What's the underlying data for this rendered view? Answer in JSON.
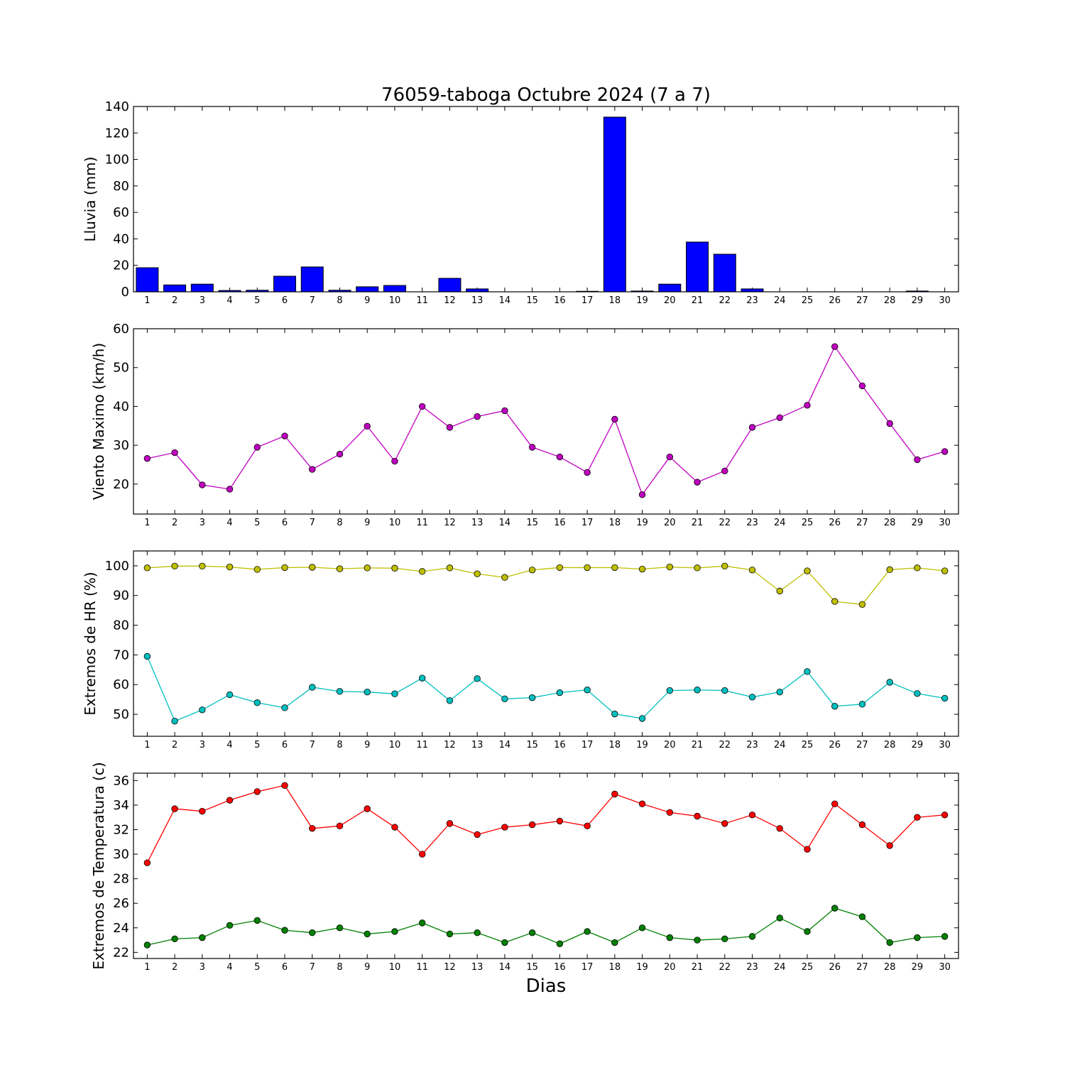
{
  "chart_data": [
    {
      "type": "bar",
      "title": "76059-taboga Octubre 2024  (7 a 7)",
      "ylabel": "Lluvia (mm)",
      "xlabel": "",
      "ylim": [
        0,
        140
      ],
      "yticks": [
        0,
        20,
        40,
        60,
        80,
        100,
        120,
        140
      ],
      "categories": [
        1,
        2,
        3,
        4,
        5,
        6,
        7,
        8,
        9,
        10,
        11,
        12,
        13,
        14,
        15,
        16,
        17,
        18,
        19,
        20,
        21,
        22,
        23,
        24,
        25,
        26,
        27,
        28,
        29,
        30
      ],
      "values": [
        18.2,
        5.2,
        5.8,
        1.0,
        1.2,
        11.8,
        18.8,
        1.2,
        3.8,
        4.8,
        0,
        10.2,
        2.2,
        0,
        0,
        0,
        0.4,
        132.0,
        0.6,
        5.8,
        37.6,
        28.4,
        2.2,
        0,
        0,
        0,
        0,
        0,
        0.6,
        0
      ],
      "color": "#0000ff"
    },
    {
      "type": "line",
      "title": "",
      "ylabel": "Viento Maximo (km/h)",
      "xlabel": "",
      "ylim": [
        12.3,
        60
      ],
      "yticks": [
        20,
        30,
        40,
        50,
        60
      ],
      "x": [
        1,
        2,
        3,
        4,
        5,
        6,
        7,
        8,
        9,
        10,
        11,
        12,
        13,
        14,
        15,
        16,
        17,
        18,
        19,
        20,
        21,
        22,
        23,
        24,
        25,
        26,
        27,
        28,
        29,
        30
      ],
      "series": [
        {
          "values": [
            26.6,
            28.1,
            19.8,
            18.7,
            29.5,
            32.4,
            23.8,
            27.7,
            34.9,
            25.9,
            40.0,
            34.6,
            37.4,
            38.9,
            29.5,
            27.0,
            23.0,
            36.7,
            17.3,
            27.0,
            20.5,
            23.4,
            34.6,
            37.1,
            40.3,
            55.4,
            45.3,
            35.6,
            26.3,
            28.4
          ],
          "color": "#bf00bf"
        }
      ]
    },
    {
      "type": "line",
      "title": "",
      "ylabel": "Extremos de HR (%)",
      "xlabel": "",
      "ylim": [
        42.6,
        105
      ],
      "yticks": [
        50,
        60,
        70,
        80,
        90,
        100
      ],
      "x": [
        1,
        2,
        3,
        4,
        5,
        6,
        7,
        8,
        9,
        10,
        11,
        12,
        13,
        14,
        15,
        16,
        17,
        18,
        19,
        20,
        21,
        22,
        23,
        24,
        25,
        26,
        27,
        28,
        29,
        30
      ],
      "series": [
        {
          "values": [
            99.3,
            99.9,
            99.9,
            99.6,
            98.8,
            99.4,
            99.5,
            99.0,
            99.3,
            99.2,
            98.1,
            99.3,
            97.3,
            96.1,
            98.6,
            99.4,
            99.4,
            99.4,
            98.9,
            99.6,
            99.3,
            99.9,
            98.6,
            91.5,
            98.3,
            88.0,
            87.0,
            98.7,
            99.3,
            98.3
          ],
          "color": "#bfbf00"
        },
        {
          "values": [
            69.5,
            47.7,
            51.5,
            56.6,
            53.9,
            52.2,
            59.1,
            57.7,
            57.5,
            56.9,
            62.2,
            54.6,
            62.0,
            55.2,
            55.6,
            57.3,
            58.2,
            50.1,
            48.6,
            58.0,
            58.2,
            58.0,
            55.8,
            57.5,
            64.4,
            52.7,
            53.4,
            60.8,
            57.0,
            55.4
          ],
          "color": "#00bfbf"
        }
      ]
    },
    {
      "type": "line",
      "title": "",
      "ylabel": "Extremos de Temperatura (c)",
      "xlabel": "Dias",
      "ylim": [
        21.5,
        36.6
      ],
      "yticks": [
        22,
        24,
        26,
        28,
        30,
        32,
        34,
        36
      ],
      "x": [
        1,
        2,
        3,
        4,
        5,
        6,
        7,
        8,
        9,
        10,
        11,
        12,
        13,
        14,
        15,
        16,
        17,
        18,
        19,
        20,
        21,
        22,
        23,
        24,
        25,
        26,
        27,
        28,
        29,
        30
      ],
      "series": [
        {
          "values": [
            29.3,
            33.7,
            33.5,
            34.4,
            35.1,
            35.6,
            32.1,
            32.3,
            33.7,
            32.2,
            30.0,
            32.5,
            31.6,
            32.2,
            32.4,
            32.7,
            32.3,
            34.9,
            34.1,
            33.4,
            33.1,
            32.5,
            33.2,
            32.1,
            30.4,
            34.1,
            32.4,
            30.7,
            33.0,
            33.2
          ],
          "color": "#ff0000"
        },
        {
          "values": [
            22.6,
            23.1,
            23.2,
            24.2,
            24.6,
            23.8,
            23.6,
            24.0,
            23.5,
            23.7,
            24.4,
            23.5,
            23.6,
            22.8,
            23.6,
            22.7,
            23.7,
            22.8,
            24.0,
            23.2,
            23.0,
            23.1,
            23.3,
            24.8,
            23.7,
            25.6,
            24.9,
            22.8,
            23.2,
            23.3
          ],
          "color": "#008000"
        }
      ]
    }
  ]
}
